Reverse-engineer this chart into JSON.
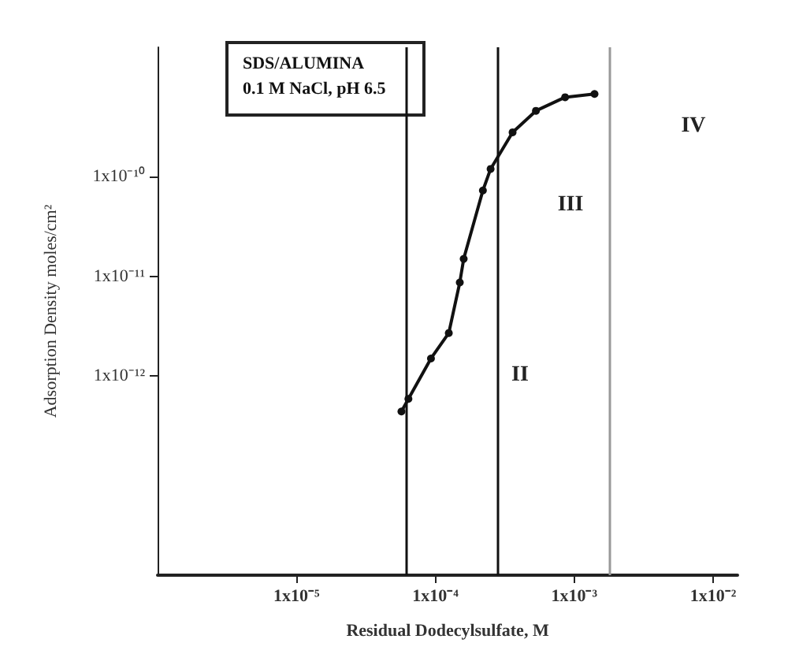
{
  "chart_data": {
    "type": "line",
    "xlabel": "Residual Dodecylsulfate, M",
    "ylabel": "Adsorption Density moles/cm²",
    "log": "xy",
    "grid": false,
    "marker": "circle",
    "line_style": "solid",
    "x": [
      5.7e-05,
      6.4e-05,
      9.3e-05,
      0.000125,
      0.00015,
      0.00016,
      0.00022,
      0.00025,
      0.00036,
      0.00053,
      0.00086,
      0.0014
    ],
    "series": [
      {
        "color": "#111111",
        "values": [
          4.4e-13,
          5.9e-13,
          1.5e-12,
          2.7e-12,
          8.7e-12,
          1.5e-11,
          7.3e-11,
          1.2e-10,
          2.8e-10,
          4.6e-10,
          6.3e-10,
          6.8e-10
        ]
      }
    ],
    "xlim": [
      1e-06,
      0.015
    ],
    "ylim": [
      1e-14,
      2e-09
    ],
    "xticks": [
      {
        "value": 1e-05,
        "label": "1x10⁻⁵"
      },
      {
        "value": 0.0001,
        "label": "1x10⁻⁴"
      },
      {
        "value": 0.001,
        "label": "1x10⁻³"
      },
      {
        "value": 0.01,
        "label": "1x10⁻²"
      }
    ],
    "yticks": [
      {
        "value": 1e-12,
        "label": "1x10⁻¹²"
      },
      {
        "value": 1e-11,
        "label": "1x10⁻¹¹"
      },
      {
        "value": 1e-10,
        "label": "1x10⁻¹⁰"
      }
    ],
    "ref_lines": [
      {
        "axis": "x",
        "value": 6.1e-05,
        "color": "#111111"
      },
      {
        "axis": "x",
        "value": 0.00028,
        "color": "#111111"
      },
      {
        "axis": "x",
        "value": 0.0018,
        "color": "#999999"
      }
    ],
    "annotations": [
      "SDS/ALUMINA",
      "0.1 M NaCl, pH 6.5",
      "II",
      "III",
      "IV"
    ]
  }
}
